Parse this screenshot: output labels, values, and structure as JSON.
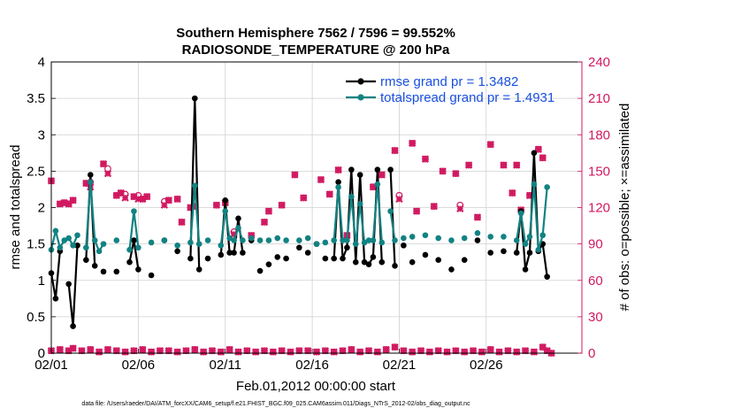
{
  "chart_data": {
    "type": "line",
    "title_line1": "Southern Hemisphere 7562 / 7596 = 99.552%",
    "title_line2": "RADIOSONDE_TEMPERATURE @ 200 hPa",
    "xlabel": "Feb.01,2012 00:00:00 start",
    "ylabel_left": "rmse and totalspread",
    "ylabel_right": "# of obs: o=possible; ×=assimilated",
    "footnote": "data file: /Users/raeder/DAI/ATM_forcXX/CAM6_setup/f.e21.FHIST_BGC.f09_025.CAM6assim.011/Diags_NTrS_2012-02/obs_diag_output.nc",
    "x_range": [
      0,
      30.5
    ],
    "ylim_left": [
      0,
      4
    ],
    "ylim_right": [
      0,
      240
    ],
    "x_ticks": [
      {
        "pos": 0,
        "label": "02/01"
      },
      {
        "pos": 5,
        "label": "02/06"
      },
      {
        "pos": 10,
        "label": "02/11"
      },
      {
        "pos": 15,
        "label": "02/16"
      },
      {
        "pos": 20,
        "label": "02/21"
      },
      {
        "pos": 25,
        "label": "02/26"
      }
    ],
    "y_left_ticks": [
      "0",
      "0.5",
      "1",
      "1.5",
      "2",
      "2.5",
      "3",
      "3.5",
      "4"
    ],
    "y_left_tick_values": [
      0,
      0.5,
      1,
      1.5,
      2,
      2.5,
      3,
      3.5,
      4
    ],
    "y_right_ticks": [
      "0",
      "30",
      "60",
      "90",
      "120",
      "150",
      "180",
      "210",
      "240"
    ],
    "y_right_tick_values": [
      0,
      30,
      60,
      90,
      120,
      150,
      180,
      210,
      240
    ],
    "series": [
      {
        "name": "rmse",
        "legend": "rmse grand pr = 1.3482",
        "color": "#000000",
        "points": [
          [
            0,
            1.1
          ],
          [
            0.25,
            0.75
          ],
          [
            0.5,
            1.4
          ],
          null,
          [
            1,
            0.95
          ],
          [
            1.25,
            0.37
          ],
          [
            1.5,
            1.48
          ],
          null,
          [
            2,
            1.28
          ],
          [
            2.25,
            2.45
          ],
          [
            2.5,
            1.2
          ],
          null,
          [
            3,
            1.12
          ],
          null,
          [
            3.75,
            1.12
          ],
          null,
          [
            4.5,
            1.25
          ],
          [
            4.75,
            1.55
          ],
          [
            5,
            1.15
          ],
          null,
          [
            5.75,
            1.07
          ],
          null,
          [
            6.5,
            1.55
          ],
          null,
          [
            7.25,
            1.4
          ],
          null,
          [
            8,
            1.3
          ],
          [
            8.25,
            3.5
          ],
          [
            8.5,
            1.15
          ],
          null,
          [
            9,
            1.3
          ],
          null,
          [
            9.75,
            1.35
          ],
          [
            10,
            2.1
          ],
          [
            10.25,
            1.38
          ],
          [
            10.5,
            1.38
          ],
          [
            10.75,
            1.85
          ],
          [
            11,
            1.38
          ],
          null,
          [
            11.5,
            1.55
          ],
          null,
          [
            12,
            1.13
          ],
          null,
          [
            12.5,
            1.22
          ],
          null,
          [
            13,
            1.32
          ],
          null,
          [
            13.5,
            1.3
          ],
          null,
          [
            14.25,
            1.45
          ],
          null,
          [
            14.75,
            1.38
          ],
          null,
          [
            15.25,
            1.5
          ],
          null,
          [
            15.75,
            1.3
          ],
          null,
          [
            16.25,
            1.3
          ],
          [
            16.5,
            2.35
          ],
          [
            16.75,
            1.3
          ],
          [
            17,
            1.45
          ],
          [
            17.25,
            2.52
          ],
          [
            17.5,
            1.25
          ],
          [
            17.75,
            2.45
          ],
          [
            18,
            1.25
          ],
          [
            18.25,
            1.22
          ],
          [
            18.5,
            1.32
          ],
          [
            18.75,
            2.52
          ],
          [
            19,
            1.25
          ],
          null,
          [
            19.5,
            2.52
          ],
          [
            19.75,
            1.2
          ],
          null,
          [
            20.25,
            1.48
          ],
          null,
          [
            20.75,
            1.25
          ],
          null,
          [
            21.5,
            1.35
          ],
          null,
          [
            22.25,
            1.28
          ],
          null,
          [
            23,
            1.15
          ],
          null,
          [
            23.75,
            1.28
          ],
          null,
          [
            24.5,
            1.55
          ],
          null,
          [
            25.25,
            1.38
          ],
          null,
          [
            26,
            1.4
          ],
          null,
          [
            26.75,
            1.38
          ],
          [
            27,
            1.95
          ],
          [
            27.25,
            1.15
          ],
          [
            27.5,
            1.38
          ],
          [
            27.75,
            2.75
          ],
          [
            28,
            1.4
          ],
          [
            28.25,
            1.5
          ],
          [
            28.5,
            1.05
          ]
        ]
      },
      {
        "name": "totalspread",
        "legend": "totalspread grand pr = 1.4931",
        "color": "#128282",
        "points": [
          [
            0,
            1.42
          ],
          [
            0.25,
            1.68
          ],
          [
            0.5,
            1.45
          ],
          [
            0.75,
            1.55
          ],
          [
            1,
            1.58
          ],
          [
            1.25,
            1.48
          ],
          [
            1.5,
            1.62
          ],
          null,
          [
            2,
            1.45
          ],
          [
            2.25,
            2.35
          ],
          [
            2.5,
            1.55
          ],
          [
            2.75,
            1.4
          ],
          [
            3,
            1.5
          ],
          null,
          [
            3.75,
            1.55
          ],
          null,
          [
            4.5,
            1.42
          ],
          [
            4.75,
            1.95
          ],
          [
            5,
            1.45
          ],
          null,
          [
            5.75,
            1.52
          ],
          null,
          [
            6.5,
            1.55
          ],
          null,
          [
            7.25,
            1.48
          ],
          null,
          [
            8,
            1.52
          ],
          [
            8.25,
            2.3
          ],
          [
            8.5,
            1.5
          ],
          null,
          [
            9,
            1.55
          ],
          null,
          [
            9.75,
            1.48
          ],
          [
            10,
            1.95
          ],
          [
            10.25,
            1.58
          ],
          [
            10.5,
            1.55
          ],
          [
            10.75,
            1.72
          ],
          [
            11,
            1.55
          ],
          null,
          [
            11.5,
            1.58
          ],
          null,
          [
            12,
            1.55
          ],
          null,
          [
            12.5,
            1.55
          ],
          null,
          [
            13,
            1.58
          ],
          null,
          [
            13.5,
            1.55
          ],
          null,
          [
            14.25,
            1.55
          ],
          null,
          [
            14.75,
            1.58
          ],
          null,
          [
            15.25,
            1.5
          ],
          null,
          [
            15.75,
            1.52
          ],
          null,
          [
            16.25,
            1.55
          ],
          [
            16.5,
            2.28
          ],
          [
            16.75,
            1.55
          ],
          [
            17,
            1.55
          ],
          [
            17.25,
            2.15
          ],
          [
            17.5,
            1.5
          ],
          [
            17.75,
            2.05
          ],
          [
            18,
            1.52
          ],
          [
            18.25,
            1.55
          ],
          [
            18.5,
            1.55
          ],
          [
            18.75,
            2.32
          ],
          [
            19,
            1.52
          ],
          null,
          [
            19.5,
            1.95
          ],
          [
            19.75,
            1.55
          ],
          null,
          [
            20.25,
            1.58
          ],
          null,
          [
            20.75,
            1.6
          ],
          null,
          [
            21.5,
            1.62
          ],
          null,
          [
            22.25,
            1.58
          ],
          null,
          [
            23,
            1.55
          ],
          null,
          [
            23.75,
            1.58
          ],
          null,
          [
            24.5,
            1.65
          ],
          null,
          [
            25.25,
            1.6
          ],
          null,
          [
            26,
            1.6
          ],
          null,
          [
            26.75,
            1.55
          ],
          [
            27,
            1.92
          ],
          [
            27.25,
            1.5
          ],
          [
            27.5,
            1.6
          ],
          [
            27.75,
            2.32
          ],
          [
            28,
            1.42
          ],
          [
            28.25,
            1.62
          ],
          [
            28.5,
            2.28
          ]
        ]
      }
    ],
    "obs_possible": [
      [
        0,
        142
      ],
      [
        0.5,
        123
      ],
      [
        0.75,
        124
      ],
      [
        1,
        123
      ],
      [
        1.25,
        126
      ],
      [
        2,
        140
      ],
      [
        2.25,
        141
      ],
      [
        3,
        156
      ],
      [
        3.25,
        152
      ],
      [
        3.75,
        130
      ],
      [
        4,
        132
      ],
      [
        4.25,
        131
      ],
      [
        4.75,
        129
      ],
      [
        5,
        130
      ],
      [
        5.25,
        127
      ],
      [
        5.5,
        129
      ],
      [
        6.5,
        125
      ],
      [
        6.75,
        126
      ],
      [
        7.25,
        127
      ],
      [
        7.5,
        108
      ],
      [
        8,
        120
      ],
      [
        8.25,
        121
      ],
      [
        9.5,
        122
      ],
      [
        10,
        124
      ],
      [
        10.5,
        100
      ],
      [
        11.5,
        97
      ],
      [
        12.25,
        108
      ],
      [
        12.5,
        117
      ],
      [
        13.25,
        122
      ],
      [
        14,
        147
      ],
      [
        14.5,
        128
      ],
      [
        15.5,
        143
      ],
      [
        16,
        131
      ],
      [
        16.5,
        151
      ],
      [
        17,
        97
      ],
      [
        18.5,
        137
      ],
      [
        19,
        147
      ],
      [
        19.75,
        167
      ],
      [
        20,
        130
      ],
      [
        20.75,
        173
      ],
      [
        21,
        117
      ],
      [
        21.5,
        160
      ],
      [
        22,
        121
      ],
      [
        22.5,
        150
      ],
      [
        23.25,
        148
      ],
      [
        23.5,
        122
      ],
      [
        24,
        155
      ],
      [
        24.5,
        112
      ],
      [
        25.25,
        172
      ],
      [
        26,
        155
      ],
      [
        26.5,
        132
      ],
      [
        26.75,
        155
      ],
      [
        27,
        118
      ],
      [
        27.5,
        130
      ],
      [
        28,
        168
      ],
      [
        28.25,
        161
      ]
    ],
    "obs_assimilated": [
      [
        0,
        142
      ],
      [
        0.5,
        123
      ],
      [
        0.75,
        124
      ],
      [
        1,
        123
      ],
      [
        1.25,
        126
      ],
      [
        2,
        140
      ],
      [
        2.25,
        137
      ],
      [
        3,
        156
      ],
      [
        3.25,
        148
      ],
      [
        3.75,
        130
      ],
      [
        4,
        132
      ],
      [
        4.25,
        128
      ],
      [
        4.75,
        129
      ],
      [
        5,
        127
      ],
      [
        5.25,
        127
      ],
      [
        5.5,
        129
      ],
      [
        6.5,
        122
      ],
      [
        6.75,
        126
      ],
      [
        7.25,
        127
      ],
      [
        7.5,
        108
      ],
      [
        8,
        120
      ],
      [
        8.25,
        121
      ],
      [
        9.5,
        122
      ],
      [
        10,
        124
      ],
      [
        10.5,
        98
      ],
      [
        11.5,
        97
      ],
      [
        12.25,
        108
      ],
      [
        12.5,
        117
      ],
      [
        13.25,
        122
      ],
      [
        14,
        147
      ],
      [
        14.5,
        128
      ],
      [
        15.5,
        143
      ],
      [
        16,
        131
      ],
      [
        16.5,
        151
      ],
      [
        17,
        97
      ],
      [
        18.5,
        137
      ],
      [
        19,
        147
      ],
      [
        19.75,
        167
      ],
      [
        20,
        127
      ],
      [
        20.75,
        173
      ],
      [
        21,
        117
      ],
      [
        21.5,
        160
      ],
      [
        22,
        121
      ],
      [
        22.5,
        150
      ],
      [
        23.25,
        148
      ],
      [
        23.5,
        119
      ],
      [
        24,
        155
      ],
      [
        24.5,
        112
      ],
      [
        25.25,
        172
      ],
      [
        26,
        155
      ],
      [
        26.5,
        132
      ],
      [
        26.75,
        155
      ],
      [
        27,
        118
      ],
      [
        27.5,
        130
      ],
      [
        28,
        168
      ],
      [
        28.25,
        161
      ]
    ],
    "obs_bottom_possible": [
      [
        0,
        2
      ],
      [
        0.5,
        3
      ],
      [
        1,
        2
      ],
      [
        1.25,
        4
      ],
      [
        1.75,
        2
      ],
      [
        2.25,
        3
      ],
      [
        2.75,
        1
      ],
      [
        3.25,
        3
      ],
      [
        3.75,
        2
      ],
      [
        4.25,
        1
      ],
      [
        4.75,
        2
      ],
      [
        5.25,
        3
      ],
      [
        5.75,
        1
      ],
      [
        6.25,
        2
      ],
      [
        6.75,
        2
      ],
      [
        7.25,
        1
      ],
      [
        7.75,
        2
      ],
      [
        8.25,
        3
      ],
      [
        8.75,
        1
      ],
      [
        9.25,
        2
      ],
      [
        9.75,
        1
      ],
      [
        10.25,
        3
      ],
      [
        10.75,
        1
      ],
      [
        11.25,
        2
      ],
      [
        11.75,
        1
      ],
      [
        12.25,
        2
      ],
      [
        12.75,
        1
      ],
      [
        13.25,
        2
      ],
      [
        13.75,
        1
      ],
      [
        14.25,
        2
      ],
      [
        14.75,
        2
      ],
      [
        15.25,
        1
      ],
      [
        15.75,
        2
      ],
      [
        16.25,
        1
      ],
      [
        16.75,
        2
      ],
      [
        17.25,
        3
      ],
      [
        17.75,
        1
      ],
      [
        18.25,
        2
      ],
      [
        18.75,
        1
      ],
      [
        19.25,
        3
      ],
      [
        19.75,
        5
      ],
      [
        20.25,
        2
      ],
      [
        20.75,
        1
      ],
      [
        21.25,
        2
      ],
      [
        21.75,
        1
      ],
      [
        22.25,
        2
      ],
      [
        22.75,
        1
      ],
      [
        23.25,
        2
      ],
      [
        23.75,
        1
      ],
      [
        24.25,
        2
      ],
      [
        24.75,
        1
      ],
      [
        25.25,
        3
      ],
      [
        25.75,
        1
      ],
      [
        26.25,
        2
      ],
      [
        26.75,
        1
      ],
      [
        27.25,
        2
      ],
      [
        27.75,
        1
      ],
      [
        28.25,
        5
      ],
      [
        28.5,
        2
      ],
      [
        28.75,
        0
      ]
    ]
  }
}
